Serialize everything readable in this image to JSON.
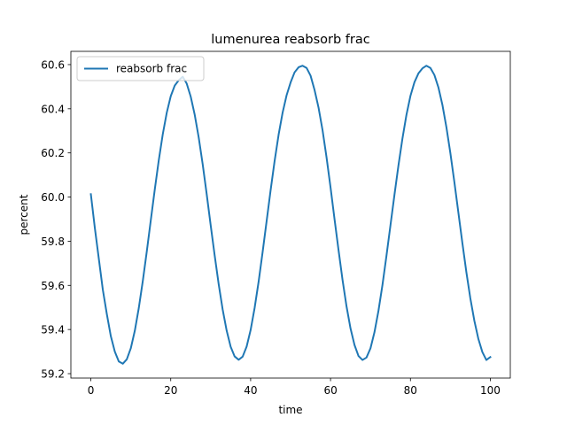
{
  "chart_data": {
    "type": "line",
    "title": "lumenurea reabsorb frac",
    "xlabel": "time",
    "ylabel": "percent",
    "xlim": [
      -5,
      105
    ],
    "ylim": [
      59.18,
      60.66
    ],
    "xticks": [
      0,
      20,
      40,
      60,
      80,
      100
    ],
    "yticks": [
      59.2,
      59.4,
      59.6,
      59.8,
      60.0,
      60.2,
      60.4,
      60.6
    ],
    "ytick_labels": [
      "59.2",
      "59.4",
      "59.6",
      "59.8",
      "60.0",
      "60.2",
      "60.4",
      "60.6"
    ],
    "grid": false,
    "legend_position": "upper-left",
    "series_color": "#1f77b4",
    "series": [
      {
        "name": "reabsorb frac",
        "x": [
          0,
          1,
          2,
          3,
          4,
          5,
          6,
          7,
          8,
          9,
          10,
          11,
          12,
          13,
          14,
          15,
          16,
          17,
          18,
          19,
          20,
          21,
          22,
          23,
          24,
          25,
          26,
          27,
          28,
          29,
          30,
          31,
          32,
          33,
          34,
          35,
          36,
          37,
          38,
          39,
          40,
          41,
          42,
          43,
          44,
          45,
          46,
          47,
          48,
          49,
          50,
          51,
          52,
          53,
          54,
          55,
          56,
          57,
          58,
          59,
          60,
          61,
          62,
          63,
          64,
          65,
          66,
          67,
          68,
          69,
          70,
          71,
          72,
          73,
          74,
          75,
          76,
          77,
          78,
          79,
          80,
          81,
          82,
          83,
          84,
          85,
          86,
          87,
          88,
          89,
          90,
          91,
          92,
          93,
          94,
          95,
          96,
          97,
          98,
          99,
          100
        ],
        "y": [
          60.013,
          59.86,
          59.72,
          59.58,
          59.47,
          59.37,
          59.3,
          59.255,
          59.245,
          59.265,
          59.315,
          59.394,
          59.497,
          59.619,
          59.753,
          59.894,
          60.034,
          60.166,
          60.284,
          60.382,
          60.457,
          60.505,
          60.529,
          60.545,
          60.514,
          60.455,
          60.373,
          60.27,
          60.148,
          60.013,
          59.872,
          59.735,
          59.605,
          59.49,
          59.395,
          59.322,
          59.278,
          59.263,
          59.277,
          59.323,
          59.398,
          59.498,
          59.617,
          59.751,
          59.891,
          60.031,
          60.163,
          60.282,
          60.382,
          60.461,
          60.519,
          60.565,
          60.588,
          60.595,
          60.585,
          60.55,
          60.485,
          60.405,
          60.303,
          60.18,
          60.044,
          59.9,
          59.76,
          59.625,
          59.505,
          59.405,
          59.33,
          59.28,
          59.262,
          59.273,
          59.315,
          59.388,
          59.485,
          59.602,
          59.734,
          59.872,
          60.01,
          60.143,
          60.265,
          60.372,
          60.458,
          60.52,
          60.56,
          60.583,
          60.595,
          60.585,
          60.553,
          60.497,
          60.418,
          60.317,
          60.199,
          60.068,
          59.93,
          59.792,
          59.66,
          59.541,
          59.44,
          59.358,
          59.298,
          59.262,
          59.275
        ]
      }
    ]
  }
}
